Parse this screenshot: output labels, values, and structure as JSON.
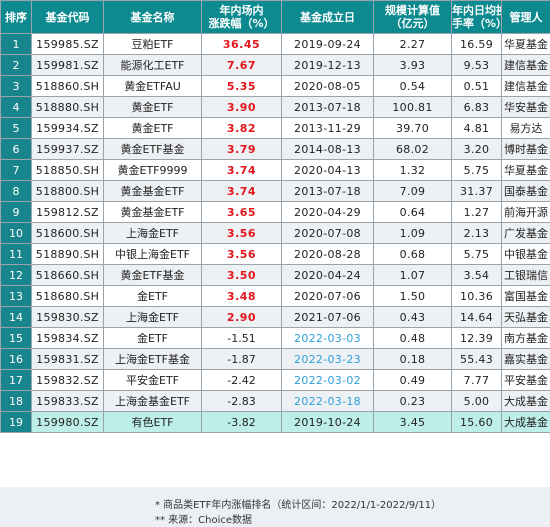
{
  "headers": {
    "rank": "排序",
    "code": "基金代码",
    "name": "基金名称",
    "change_line1": "年内场内",
    "change_line2": "涨跌幅（%）",
    "date": "基金成立日",
    "size_line1": "规模计算值",
    "size_line2": "（亿元）",
    "turnover_line1": "年内日均换",
    "turnover_line2": "手率（%）",
    "manager": "管理人"
  },
  "rows": [
    {
      "rank": "1",
      "code": "159985.SZ",
      "name": "豆粕ETF",
      "change": "36.45",
      "date": "2019-09-24",
      "size": "2.27",
      "turnover": "16.59",
      "manager": "华夏基金"
    },
    {
      "rank": "2",
      "code": "159981.SZ",
      "name": "能源化工ETF",
      "change": "7.67",
      "date": "2019-12-13",
      "size": "3.93",
      "turnover": "9.53",
      "manager": "建信基金"
    },
    {
      "rank": "3",
      "code": "518860.SH",
      "name": "黄金ETFAU",
      "change": "5.35",
      "date": "2020-08-05",
      "size": "0.54",
      "turnover": "0.51",
      "manager": "建信基金"
    },
    {
      "rank": "4",
      "code": "518880.SH",
      "name": "黄金ETF",
      "change": "3.90",
      "date": "2013-07-18",
      "size": "100.81",
      "turnover": "6.83",
      "manager": "华安基金"
    },
    {
      "rank": "5",
      "code": "159934.SZ",
      "name": "黄金ETF",
      "change": "3.82",
      "date": "2013-11-29",
      "size": "39.70",
      "turnover": "4.81",
      "manager": "易方达"
    },
    {
      "rank": "6",
      "code": "159937.SZ",
      "name": "黄金ETF基金",
      "change": "3.79",
      "date": "2014-08-13",
      "size": "68.02",
      "turnover": "3.20",
      "manager": "博时基金"
    },
    {
      "rank": "7",
      "code": "518850.SH",
      "name": "黄金ETF9999",
      "change": "3.74",
      "date": "2020-04-13",
      "size": "1.32",
      "turnover": "5.75",
      "manager": "华夏基金"
    },
    {
      "rank": "8",
      "code": "518800.SH",
      "name": "黄金基金ETF",
      "change": "3.74",
      "date": "2013-07-18",
      "size": "7.09",
      "turnover": "31.37",
      "manager": "国泰基金"
    },
    {
      "rank": "9",
      "code": "159812.SZ",
      "name": "黄金基金ETF",
      "change": "3.65",
      "date": "2020-04-29",
      "size": "0.64",
      "turnover": "1.27",
      "manager": "前海开源"
    },
    {
      "rank": "10",
      "code": "518600.SH",
      "name": "上海金ETF",
      "change": "3.56",
      "date": "2020-07-08",
      "size": "1.09",
      "turnover": "2.13",
      "manager": "广发基金"
    },
    {
      "rank": "11",
      "code": "518890.SH",
      "name": "中银上海金ETF",
      "change": "3.56",
      "date": "2020-08-28",
      "size": "0.68",
      "turnover": "5.75",
      "manager": "中银基金"
    },
    {
      "rank": "12",
      "code": "518660.SH",
      "name": "黄金ETF基金",
      "change": "3.50",
      "date": "2020-04-24",
      "size": "1.07",
      "turnover": "3.54",
      "manager": "工银瑞信"
    },
    {
      "rank": "13",
      "code": "518680.SH",
      "name": "金ETF",
      "change": "3.48",
      "date": "2020-07-06",
      "size": "1.50",
      "turnover": "10.36",
      "manager": "富国基金"
    },
    {
      "rank": "14",
      "code": "159830.SZ",
      "name": "上海金ETF",
      "change": "2.90",
      "date": "2021-07-06",
      "size": "0.43",
      "turnover": "14.64",
      "manager": "天弘基金"
    },
    {
      "rank": "15",
      "code": "159834.SZ",
      "name": "金ETF",
      "change": "-1.51",
      "date": "2022-03-03",
      "size": "0.48",
      "turnover": "12.39",
      "manager": "南方基金"
    },
    {
      "rank": "16",
      "code": "159831.SZ",
      "name": "上海金ETF基金",
      "change": "-1.87",
      "date": "2022-03-23",
      "size": "0.18",
      "turnover": "55.43",
      "manager": "嘉实基金"
    },
    {
      "rank": "17",
      "code": "159832.SZ",
      "name": "平安金ETF",
      "change": "-2.42",
      "date": "2022-03-02",
      "size": "0.49",
      "turnover": "7.77",
      "manager": "平安基金"
    },
    {
      "rank": "18",
      "code": "159833.SZ",
      "name": "上海金基金ETF",
      "change": "-2.83",
      "date": "2022-03-18",
      "size": "0.23",
      "turnover": "5.00",
      "manager": "大成基金"
    },
    {
      "rank": "19",
      "code": "159980.SZ",
      "name": "有色ETF",
      "change": "-3.82",
      "date": "2019-10-24",
      "size": "3.45",
      "turnover": "15.60",
      "manager": "大成基金"
    }
  ],
  "footer": {
    "note1": "*  商品类ETF年内涨幅排名（统计区间：2022/1/1-2022/9/11）",
    "note2": "**  来源：Choice数据"
  },
  "colors": {
    "header_bg": "#0c8a8f",
    "positive_change": "#e3141a",
    "recent_date": "#2f9fd8",
    "highlight_row": "#bdefe8"
  }
}
